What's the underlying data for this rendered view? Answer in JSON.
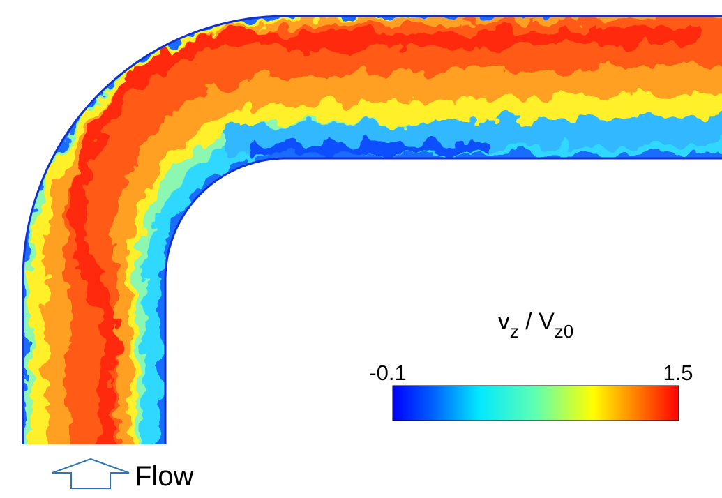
{
  "colorbar": {
    "label": {
      "v": "v",
      "v_sub": "z",
      "slash": " / ",
      "V": "V",
      "V_sub": "z0"
    },
    "min": "-0.1",
    "max": "1.5"
  },
  "flow_label": "Flow"
}
